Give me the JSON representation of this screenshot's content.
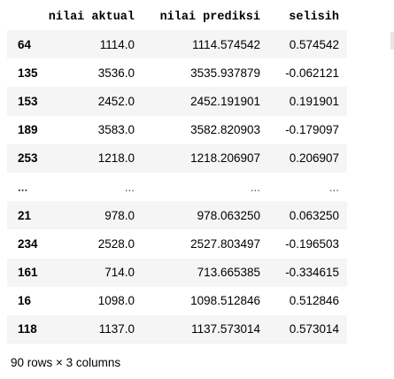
{
  "table": {
    "columns": [
      "nilai aktual",
      "nilai prediksi",
      "selisih"
    ],
    "rows": [
      {
        "index": "64",
        "aktual": "1114.0",
        "prediksi": "1114.574542",
        "selisih": "0.574542"
      },
      {
        "index": "135",
        "aktual": "3536.0",
        "prediksi": "3535.937879",
        "selisih": "-0.062121"
      },
      {
        "index": "153",
        "aktual": "2452.0",
        "prediksi": "2452.191901",
        "selisih": "0.191901"
      },
      {
        "index": "189",
        "aktual": "3583.0",
        "prediksi": "3582.820903",
        "selisih": "-0.179097"
      },
      {
        "index": "253",
        "aktual": "1218.0",
        "prediksi": "1218.206907",
        "selisih": "0.206907"
      },
      {
        "index": "...",
        "aktual": "...",
        "prediksi": "...",
        "selisih": "..."
      },
      {
        "index": "21",
        "aktual": "978.0",
        "prediksi": "978.063250",
        "selisih": "0.063250"
      },
      {
        "index": "234",
        "aktual": "2528.0",
        "prediksi": "2527.803497",
        "selisih": "-0.196503"
      },
      {
        "index": "161",
        "aktual": "714.0",
        "prediksi": "713.665385",
        "selisih": "-0.334615"
      },
      {
        "index": "16",
        "aktual": "1098.0",
        "prediksi": "1098.512846",
        "selisih": "0.512846"
      },
      {
        "index": "118",
        "aktual": "1137.0",
        "prediksi": "1137.573014",
        "selisih": "0.573014"
      }
    ],
    "shape_text": "90 rows × 3 columns"
  },
  "colors": {
    "stripe": "#f5f5f5",
    "text": "#000000"
  }
}
